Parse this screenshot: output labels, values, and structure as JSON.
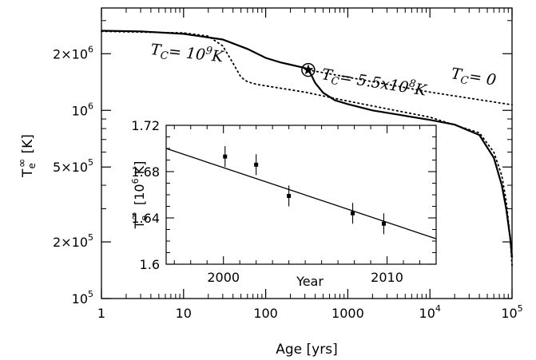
{
  "chart_data": [
    {
      "type": "line",
      "xlabel_main": "Age [yrs]",
      "ylabel_main": {
        "base": "T",
        "sup": "∞",
        "sub": "e",
        "unit": "[K]"
      },
      "x_scale": "log",
      "y_scale": "log",
      "xlim": [
        1,
        100000
      ],
      "ylim": [
        100000,
        3500000
      ],
      "grid": false,
      "x_ticks": [
        {
          "value": 1,
          "label": "1"
        },
        {
          "value": 10,
          "label": "10"
        },
        {
          "value": 100,
          "label": "100"
        },
        {
          "value": 1000,
          "label": "1000"
        },
        {
          "value": 10000,
          "label": "10",
          "sup": "4"
        },
        {
          "value": 100000,
          "label": "10",
          "sup": "5"
        }
      ],
      "y_ticks": [
        {
          "value": 100000,
          "label": "10",
          "sup": "5"
        },
        {
          "value": 200000,
          "label": "2×10",
          "sup": "5"
        },
        {
          "value": 500000,
          "label": "5×10",
          "sup": "5"
        },
        {
          "value": 1000000,
          "label": "10",
          "sup": "6"
        },
        {
          "value": 2000000,
          "label": "2×10",
          "sup": "6"
        }
      ],
      "series": [
        {
          "style": "solid",
          "x": [
            1,
            3,
            10,
            30,
            60,
            100,
            150,
            200,
            250,
            300,
            330,
            360,
            400,
            500,
            700,
            1000,
            2000,
            5000,
            10000,
            20000,
            40000,
            60000,
            75000,
            85000,
            95000,
            100000
          ],
          "y": [
            2650000,
            2630000,
            2550000,
            2380000,
            2120000,
            1900000,
            1800000,
            1750000,
            1710000,
            1680000,
            1640000,
            1540000,
            1400000,
            1240000,
            1130000,
            1080000,
            1000000,
            935000,
            890000,
            840000,
            740000,
            560000,
            400000,
            300000,
            210000,
            165000
          ]
        },
        {
          "style": "dotted",
          "x": [
            1,
            10,
            20,
            30,
            40,
            50,
            60,
            80,
            100,
            300,
            1000,
            10000,
            40000,
            60000,
            75000,
            85000,
            95000,
            100000
          ],
          "y": [
            2630000,
            2580000,
            2480000,
            2200000,
            1780000,
            1500000,
            1420000,
            1370000,
            1350000,
            1250000,
            1120000,
            920000,
            760000,
            600000,
            450000,
            330000,
            210000,
            150000
          ]
        },
        {
          "style": "dotted",
          "x": [
            330,
            1000,
            10000,
            100000
          ],
          "y": [
            1640000,
            1500000,
            1250000,
            1070000
          ]
        }
      ],
      "marker": {
        "shape": "star",
        "x": 330,
        "y": 1640000
      },
      "annotations": [
        {
          "text": "T",
          "sub": "C",
          "rest": "= 10",
          "sup": "9",
          "tail": "K"
        },
        {
          "text": "T",
          "sub": "C",
          "rest": "= 5.5x10",
          "sup": "8",
          "tail": "K"
        },
        {
          "text": "T",
          "sub": "C",
          "rest": "= 0"
        }
      ]
    },
    {
      "type": "scatter",
      "xlabel": "Year",
      "ylabel": {
        "base": "T",
        "sup": "∞",
        "sub": "e",
        "unit": "[10",
        "unit_sup": "6",
        "unit_tail": " K]"
      },
      "xlim": [
        1996.5,
        2013
      ],
      "ylim": [
        1.6,
        1.72
      ],
      "grid": false,
      "x_ticks": [
        2000,
        2010
      ],
      "x_tick_labels": [
        "2000",
        "2010"
      ],
      "y_ticks": [
        1.6,
        1.64,
        1.68,
        1.72
      ],
      "y_tick_labels": [
        "1.6",
        "1.64",
        "1.68",
        "1.72"
      ],
      "points": [
        {
          "x": 2000.1,
          "y": 1.693,
          "err": 0.009
        },
        {
          "x": 2002.0,
          "y": 1.686,
          "err": 0.009
        },
        {
          "x": 2004.0,
          "y": 1.659,
          "err": 0.009
        },
        {
          "x": 2007.9,
          "y": 1.644,
          "err": 0.009
        },
        {
          "x": 2009.8,
          "y": 1.635,
          "err": 0.009
        }
      ],
      "fit_line": {
        "x": [
          1996.5,
          2013
        ],
        "y": [
          1.7,
          1.622
        ]
      }
    }
  ]
}
